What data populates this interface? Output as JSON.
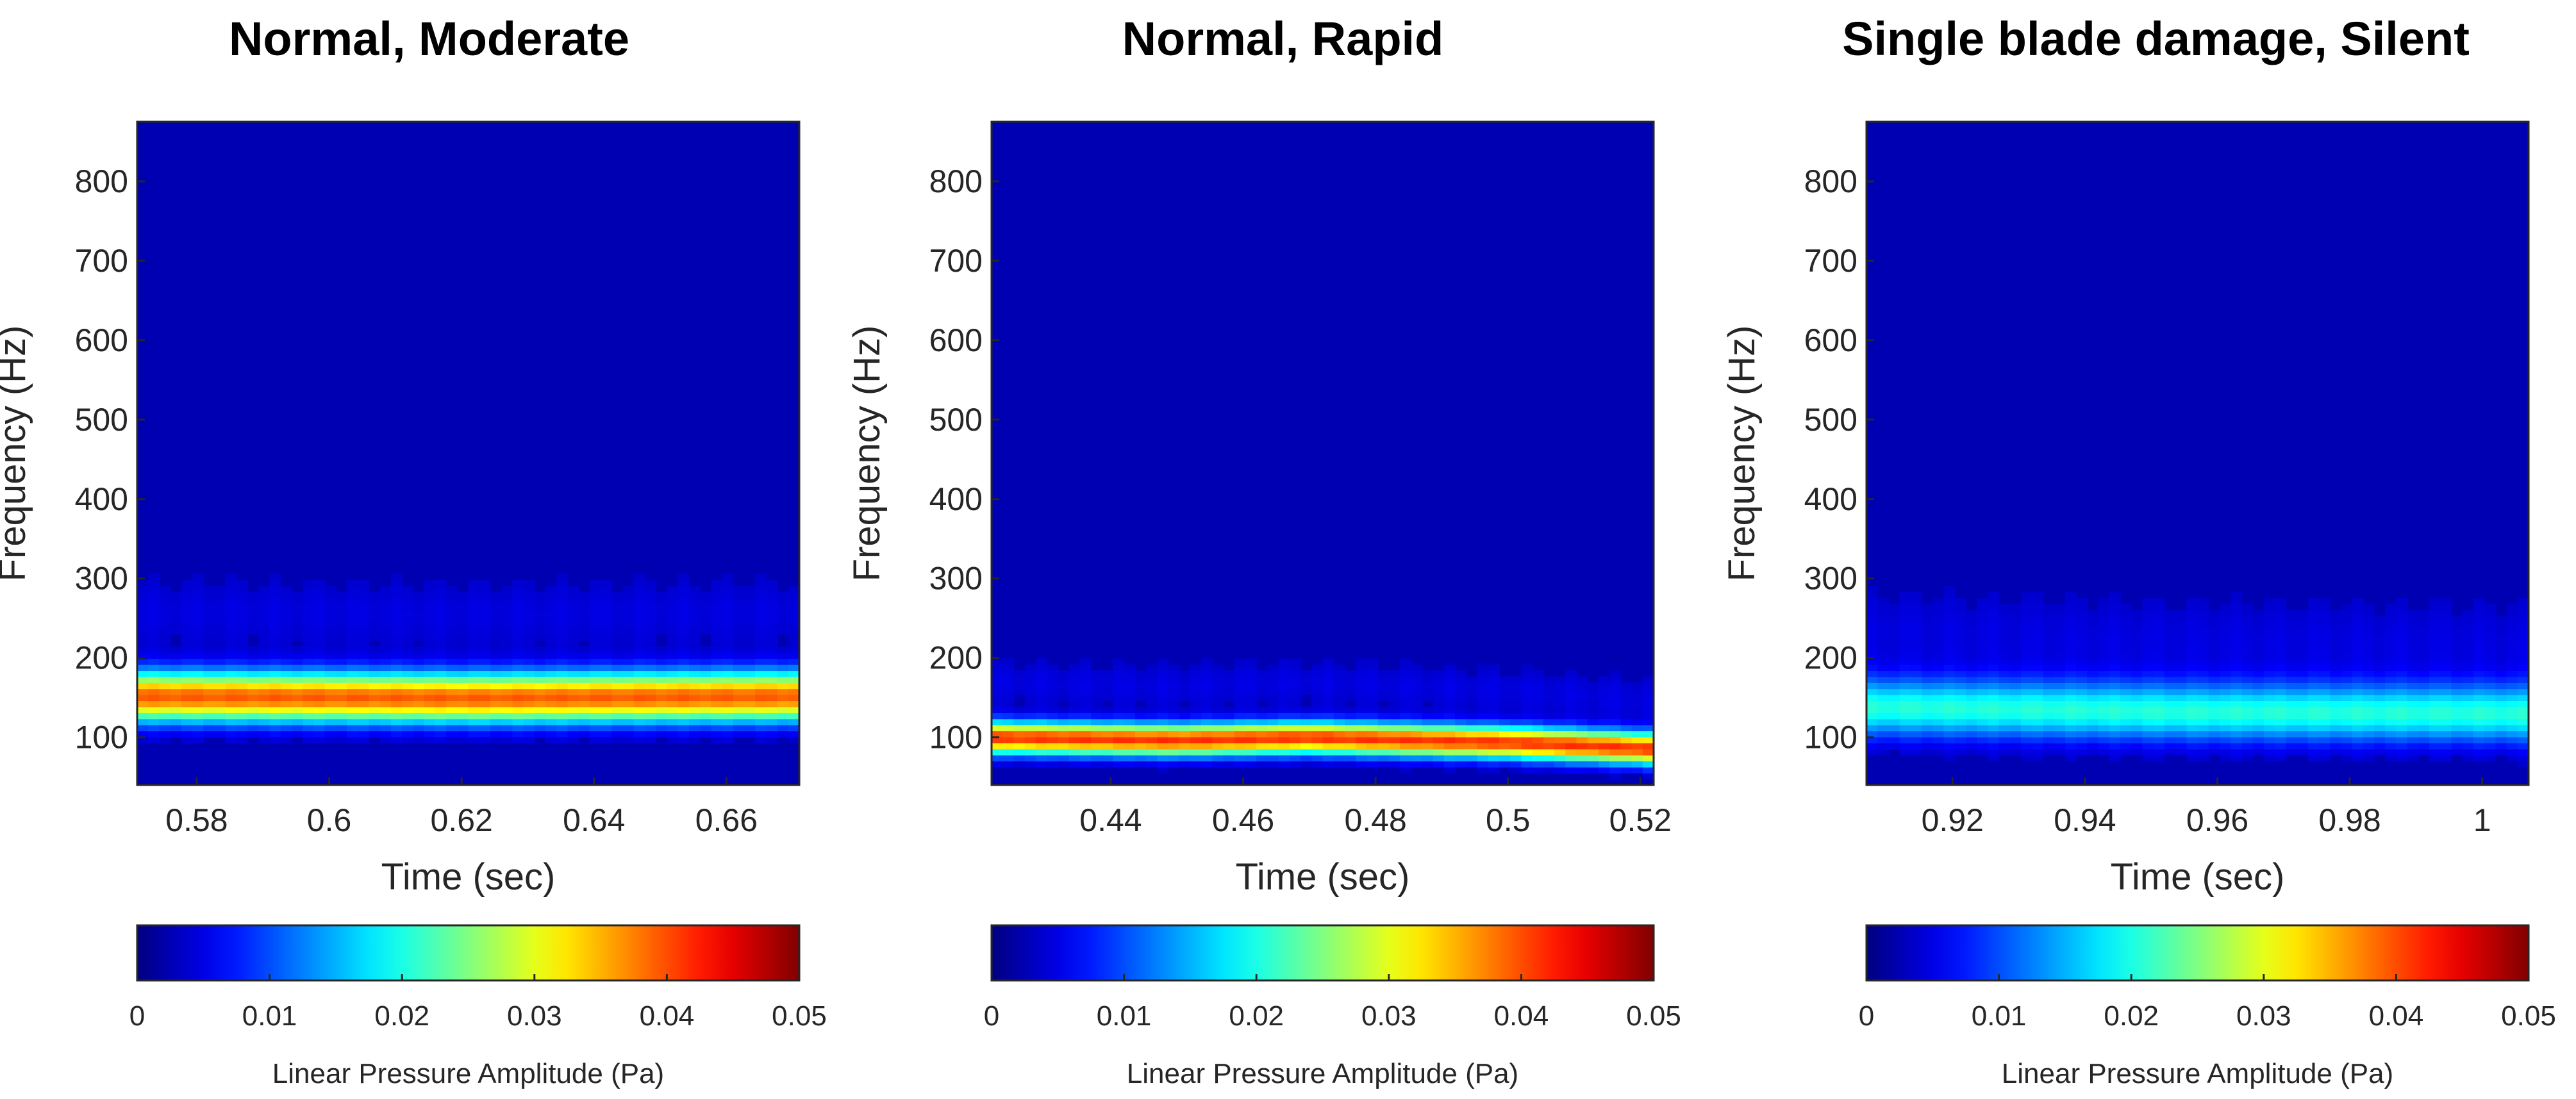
{
  "chart_data": [
    {
      "type": "heatmap",
      "title": "Normal, Moderate",
      "xlabel": "Time (sec)",
      "ylabel": "Frequency (Hz)",
      "xlim": [
        0.571,
        0.671
      ],
      "ylim": [
        40,
        875
      ],
      "x_ticks": [
        0.58,
        0.6,
        0.62,
        0.64,
        0.66
      ],
      "x_tick_labels": [
        "0.58",
        "0.6",
        "0.62",
        "0.64",
        "0.66"
      ],
      "y_ticks": [
        100,
        200,
        300,
        400,
        500,
        600,
        700,
        800
      ],
      "y_tick_labels": [
        "100",
        "200",
        "300",
        "400",
        "500",
        "600",
        "700",
        "800"
      ],
      "colorbar": {
        "label": "Linear Pressure Amplitude (Pa)",
        "min": 0,
        "max": 0.05,
        "ticks": [
          "0",
          "0.01",
          "0.02",
          "0.03",
          "0.04",
          "0.05"
        ]
      },
      "dominant_band": {
        "freq_center": [
          [
            0.571,
            152
          ],
          [
            0.621,
            150
          ],
          [
            0.671,
            152
          ]
        ],
        "bandwidth_hz": 22,
        "peak_amplitude": 0.037
      }
    },
    {
      "type": "heatmap",
      "title": "Normal, Rapid",
      "xlabel": "Time (sec)",
      "ylabel": "Frequency (Hz)",
      "xlim": [
        0.422,
        0.522
      ],
      "ylim": [
        40,
        875
      ],
      "x_ticks": [
        0.44,
        0.46,
        0.48,
        0.5,
        0.52
      ],
      "x_tick_labels": [
        "0.44",
        "0.46",
        "0.48",
        "0.5",
        "0.52"
      ],
      "y_ticks": [
        100,
        200,
        300,
        400,
        500,
        600,
        700,
        800
      ],
      "y_tick_labels": [
        "100",
        "200",
        "300",
        "400",
        "500",
        "600",
        "700",
        "800"
      ],
      "colorbar": {
        "label": "Linear Pressure Amplitude (Pa)",
        "min": 0,
        "max": 0.05,
        "ticks": [
          "0",
          "0.01",
          "0.02",
          "0.03",
          "0.04",
          "0.05"
        ]
      },
      "dominant_band": {
        "freq_center": [
          [
            0.422,
            100
          ],
          [
            0.45,
            97
          ],
          [
            0.47,
            100
          ],
          [
            0.5,
            94
          ],
          [
            0.522,
            86
          ]
        ],
        "bandwidth_hz": 14,
        "peak_amplitude": 0.039
      }
    },
    {
      "type": "heatmap",
      "title": "Single blade damage, Silent",
      "xlabel": "Time (sec)",
      "ylabel": "Frequency (Hz)",
      "xlim": [
        0.907,
        1.007
      ],
      "ylim": [
        40,
        875
      ],
      "x_ticks": [
        0.92,
        0.94,
        0.96,
        0.98,
        1.0
      ],
      "x_tick_labels": [
        "0.92",
        "0.94",
        "0.96",
        "0.98",
        "1"
      ],
      "y_ticks": [
        100,
        200,
        300,
        400,
        500,
        600,
        700,
        800
      ],
      "y_tick_labels": [
        "100",
        "200",
        "300",
        "400",
        "500",
        "600",
        "700",
        "800"
      ],
      "colorbar": {
        "label": "Linear Pressure Amplitude (Pa)",
        "min": 0,
        "max": 0.05,
        "ticks": [
          "0",
          "0.01",
          "0.02",
          "0.03",
          "0.04",
          "0.05"
        ]
      },
      "dominant_band": {
        "freq_center": [
          [
            0.907,
            138
          ],
          [
            0.957,
            132
          ],
          [
            1.007,
            130
          ]
        ],
        "bandwidth_hz": 26,
        "peak_amplitude": 0.018
      }
    }
  ]
}
